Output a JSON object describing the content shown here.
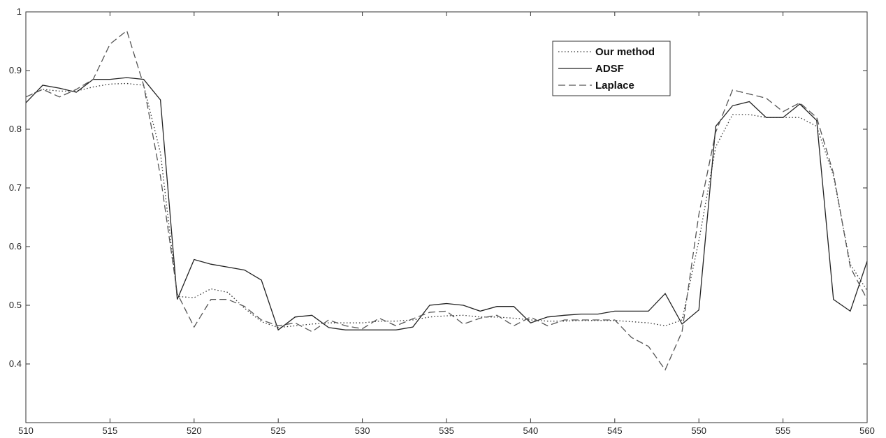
{
  "chart_data": {
    "type": "line",
    "title": "",
    "xlabel": "",
    "ylabel": "",
    "xlim": [
      510,
      560
    ],
    "ylim": [
      0.3,
      1.0
    ],
    "x_ticks": [
      510,
      515,
      520,
      525,
      530,
      535,
      540,
      545,
      550,
      555,
      560
    ],
    "y_ticks": [
      0.4,
      0.5,
      0.6,
      0.7,
      0.8,
      0.9,
      1
    ],
    "y_tick_labels": [
      "0.4",
      "0.5",
      "0.6",
      "0.7",
      "0.8",
      "0.9",
      "1"
    ],
    "grid": false,
    "legend_position": "top-right",
    "x": [
      510,
      511,
      512,
      513,
      514,
      515,
      516,
      517,
      518,
      519,
      520,
      521,
      522,
      523,
      524,
      525,
      526,
      527,
      528,
      529,
      530,
      531,
      532,
      533,
      534,
      535,
      536,
      537,
      538,
      539,
      540,
      541,
      542,
      543,
      544,
      545,
      546,
      547,
      548,
      549,
      550,
      551,
      552,
      553,
      554,
      555,
      556,
      557,
      558,
      559,
      560
    ],
    "series": [
      {
        "name": "Our method",
        "style": "dotted",
        "color": "#333333",
        "values": [
          0.855,
          0.868,
          0.865,
          0.865,
          0.872,
          0.877,
          0.878,
          0.875,
          0.76,
          0.515,
          0.513,
          0.528,
          0.522,
          0.495,
          0.472,
          0.462,
          0.465,
          0.468,
          0.47,
          0.47,
          0.47,
          0.473,
          0.473,
          0.475,
          0.48,
          0.482,
          0.483,
          0.48,
          0.48,
          0.478,
          0.475,
          0.473,
          0.473,
          0.474,
          0.474,
          0.474,
          0.472,
          0.47,
          0.465,
          0.475,
          0.61,
          0.77,
          0.825,
          0.825,
          0.82,
          0.82,
          0.82,
          0.805,
          0.72,
          0.57,
          0.525
        ]
      },
      {
        "name": "ADSF",
        "style": "solid",
        "color": "#222222",
        "values": [
          0.845,
          0.875,
          0.87,
          0.863,
          0.885,
          0.885,
          0.888,
          0.885,
          0.85,
          0.51,
          0.578,
          0.57,
          0.565,
          0.56,
          0.543,
          0.458,
          0.48,
          0.483,
          0.462,
          0.458,
          0.458,
          0.458,
          0.458,
          0.463,
          0.5,
          0.503,
          0.5,
          0.49,
          0.498,
          0.498,
          0.47,
          0.48,
          0.483,
          0.485,
          0.485,
          0.49,
          0.49,
          0.49,
          0.52,
          0.468,
          0.492,
          0.805,
          0.84,
          0.847,
          0.82,
          0.82,
          0.843,
          0.815,
          0.51,
          0.49,
          0.575
        ]
      },
      {
        "name": "Laplace",
        "style": "dashed",
        "color": "#555555",
        "values": [
          0.855,
          0.868,
          0.855,
          0.868,
          0.885,
          0.945,
          0.968,
          0.875,
          0.72,
          0.52,
          0.463,
          0.51,
          0.51,
          0.498,
          0.475,
          0.465,
          0.47,
          0.455,
          0.475,
          0.465,
          0.46,
          0.478,
          0.465,
          0.477,
          0.488,
          0.49,
          0.468,
          0.478,
          0.483,
          0.465,
          0.48,
          0.465,
          0.475,
          0.475,
          0.475,
          0.475,
          0.445,
          0.43,
          0.39,
          0.455,
          0.655,
          0.795,
          0.867,
          0.86,
          0.853,
          0.83,
          0.845,
          0.82,
          0.725,
          0.565,
          0.51
        ]
      }
    ]
  }
}
